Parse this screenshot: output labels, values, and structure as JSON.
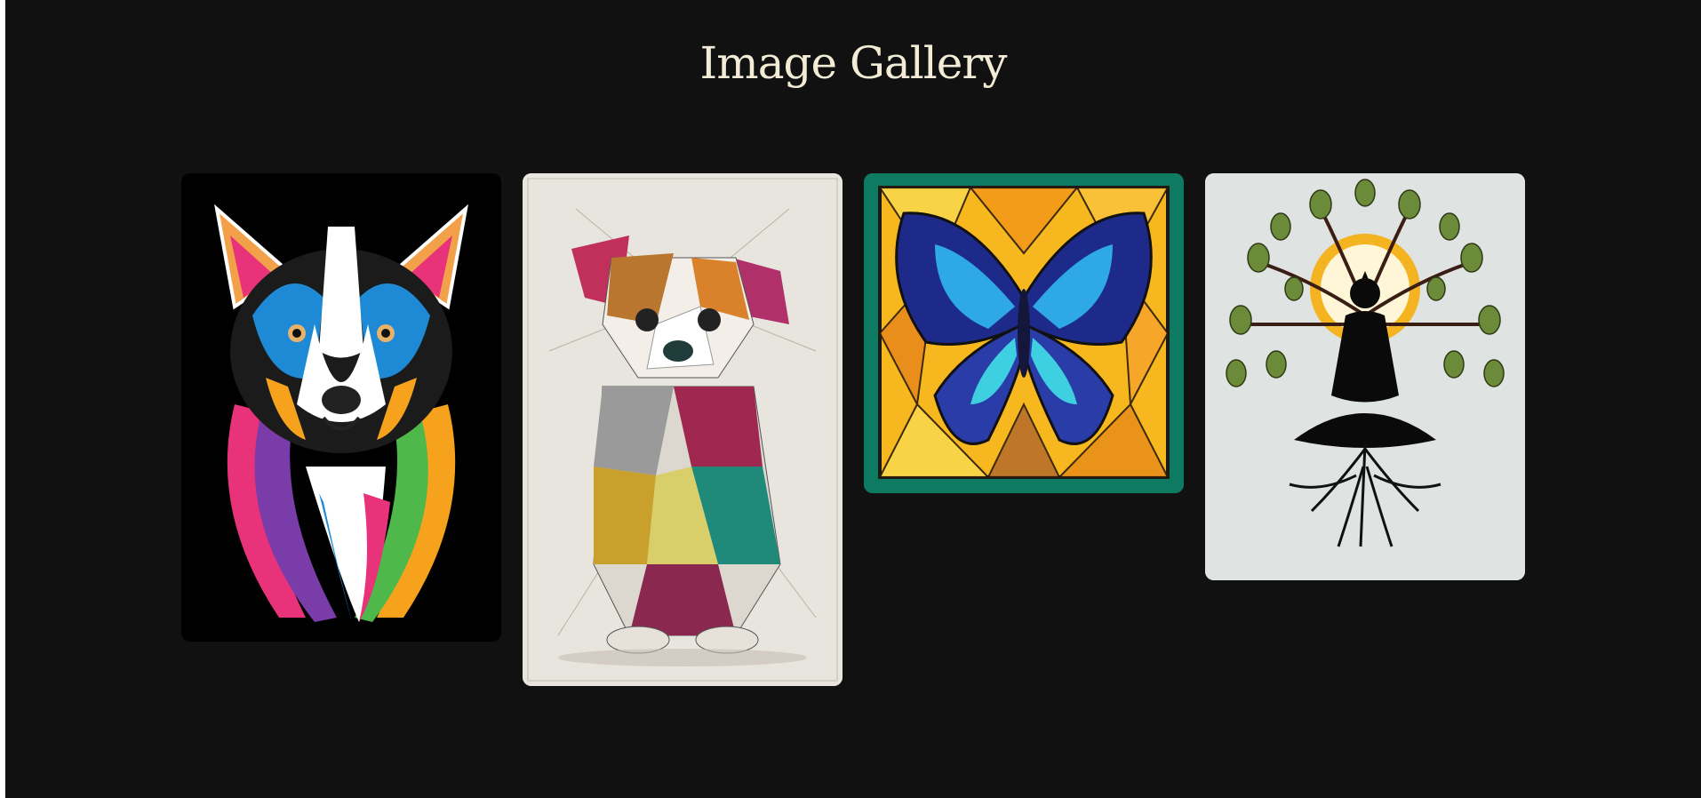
{
  "page": {
    "title": "Image Gallery",
    "background": "#111111",
    "title_color": "#f2ecd6"
  },
  "gallery": {
    "images": [
      {
        "subject": "colorful-dog-portrait",
        "icon": "dog-icon"
      },
      {
        "subject": "geometric-puppy",
        "icon": "puppy-icon"
      },
      {
        "subject": "stained-glass-butterfly",
        "icon": "butterfly-icon"
      },
      {
        "subject": "meditating-figure-tree",
        "icon": "tree-icon"
      }
    ]
  }
}
